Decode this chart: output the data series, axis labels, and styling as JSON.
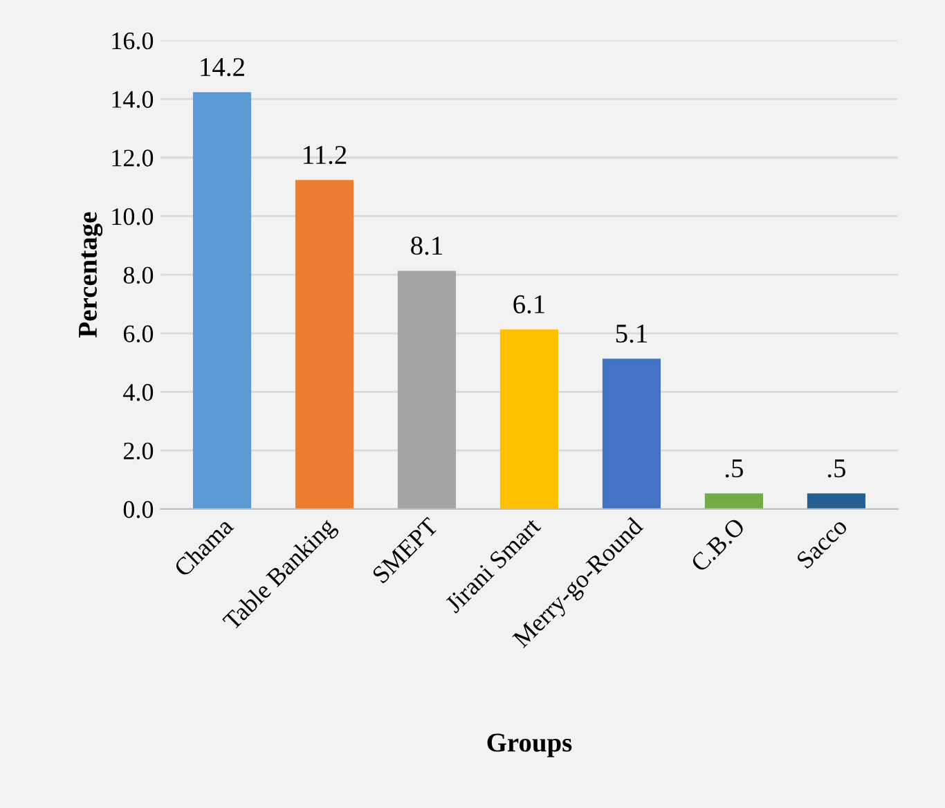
{
  "chart_data": {
    "type": "bar",
    "xlabel": "Groups",
    "ylabel": "Percentage",
    "categories": [
      "Chama",
      "Table Banking",
      "SMEPT",
      "Jirani Smart",
      "Merry-go-Round",
      "C.B.O",
      "Sacco"
    ],
    "values": [
      14.2,
      11.2,
      8.1,
      6.1,
      5.1,
      0.5,
      0.5
    ],
    "colors": [
      "#5b9bd5",
      "#ed7d31",
      "#a5a5a5",
      "#ffc000",
      "#4472c4",
      "#70ad47",
      "#255e91"
    ],
    "value_labels": [
      "14.2",
      "11.2",
      "8.1",
      "6.1",
      "5.1",
      ".5",
      ".5"
    ],
    "ylim": [
      0,
      16
    ],
    "yticks": [
      {
        "value": 0,
        "label": "0.0"
      },
      {
        "value": 2,
        "label": "2.0"
      },
      {
        "value": 4,
        "label": "4.0"
      },
      {
        "value": 6,
        "label": "6.0"
      },
      {
        "value": 8,
        "label": "8.0"
      },
      {
        "value": 10,
        "label": "10.0"
      },
      {
        "value": 12,
        "label": "12.0"
      },
      {
        "value": 14,
        "label": "14.0"
      },
      {
        "value": 16,
        "label": "16.0"
      }
    ],
    "grid": "y"
  }
}
